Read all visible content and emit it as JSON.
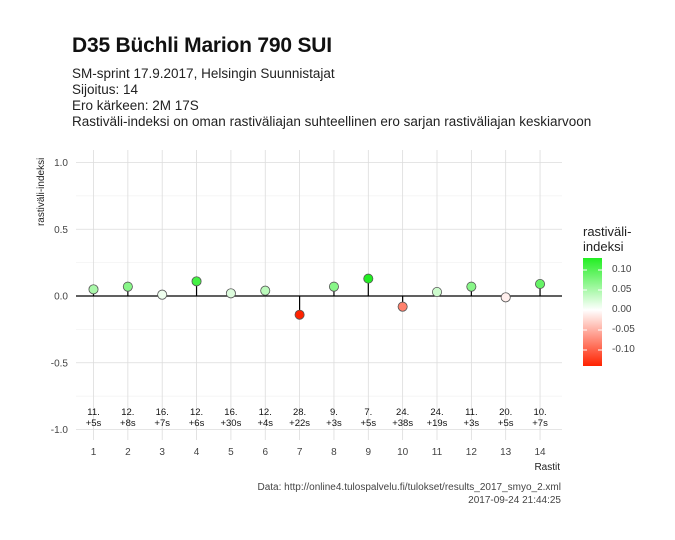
{
  "header": {
    "title": "D35 Büchli Marion 790 SUI",
    "subtitle_lines": [
      "SM-sprint 17.9.2017, Helsingin Suunnistajat",
      "Sijoitus: 14",
      "Ero kärkeen: 2M 17S",
      "Rastiväli-indeksi on oman rastiväliajan suhteellinen ero sarjan rastiväliajan keskiarvoon"
    ]
  },
  "caption": {
    "source": "Data: http://online4.tulospalvelu.fi/tulokset/results_2017_smyo_2.xml",
    "timestamp": "2017-09-24 21:44:25"
  },
  "legend": {
    "title_line1": "rastiväli-",
    "title_line2": "indeksi",
    "tick_values": [
      0.1,
      0.05,
      0.0,
      -0.05,
      -0.1
    ],
    "tick_labels": [
      "0.10",
      "0.05",
      "0.00",
      "-0.05",
      "-0.10"
    ],
    "colors": {
      "high": "#22ee22",
      "mid": "#ffffff",
      "low": "#ff2200"
    },
    "range": [
      -0.14,
      0.13
    ]
  },
  "chart_data": {
    "type": "scatter",
    "xlabel": "Rastit",
    "ylabel": "rastiväli-indeksi",
    "ylim": [
      -1.05,
      1.1
    ],
    "yticks": [
      1.0,
      0.5,
      0.0,
      -0.5,
      -1.0
    ],
    "ytick_labels": [
      "1.0",
      "0.5",
      "0.0",
      "-0.5",
      "-1.0"
    ],
    "x": [
      1,
      2,
      3,
      4,
      5,
      6,
      7,
      8,
      9,
      10,
      11,
      12,
      13,
      14
    ],
    "xtick_labels": [
      "1",
      "2",
      "3",
      "4",
      "5",
      "6",
      "7",
      "8",
      "9",
      "10",
      "11",
      "12",
      "13",
      "14"
    ],
    "values": [
      0.05,
      0.07,
      0.01,
      0.11,
      0.02,
      0.04,
      -0.14,
      0.07,
      0.13,
      -0.08,
      0.03,
      0.07,
      -0.01,
      0.09
    ],
    "ranks": [
      "11.",
      "12.",
      "16.",
      "12.",
      "16.",
      "12.",
      "28.",
      "9.",
      "7.",
      "24.",
      "24.",
      "11.",
      "20.",
      "10."
    ],
    "deltas": [
      "+5s",
      "+8s",
      "+7s",
      "+6s",
      "+30s",
      "+4s",
      "+22s",
      "+3s",
      "+5s",
      "+38s",
      "+19s",
      "+3s",
      "+5s",
      "+7s"
    ],
    "grid": true
  }
}
